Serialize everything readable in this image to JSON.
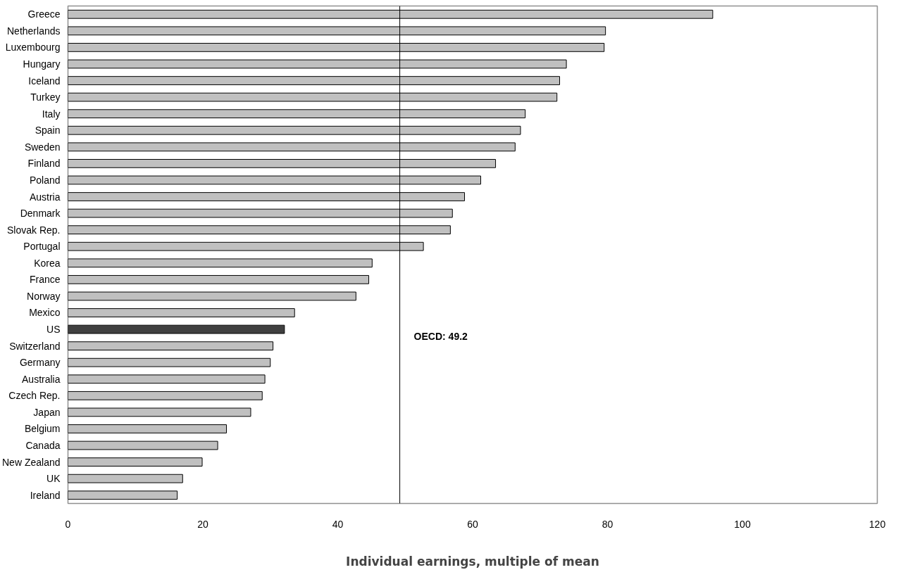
{
  "chart_data": {
    "type": "bar",
    "orientation": "horizontal",
    "xlabel": "Individual earnings, multiple of mean",
    "categories": [
      "Greece",
      "Netherlands",
      "Luxembourg",
      "Hungary",
      "Iceland",
      "Turkey",
      "Italy",
      "Spain",
      "Sweden",
      "Finland",
      "Poland",
      "Austria",
      "Denmark",
      "Slovak Rep.",
      "Portugal",
      "Korea",
      "France",
      "Norway",
      "Mexico",
      "US",
      "Switzerland",
      "Germany",
      "Australia",
      "Czech Rep.",
      "Japan",
      "Belgium",
      "Canada",
      "New Zealand",
      "UK",
      "Ireland"
    ],
    "values": [
      95.6,
      79.7,
      79.5,
      73.9,
      72.9,
      72.5,
      67.8,
      67.1,
      66.3,
      63.4,
      61.2,
      58.8,
      57.0,
      56.7,
      52.7,
      45.1,
      44.6,
      42.7,
      33.6,
      32.1,
      30.4,
      30.0,
      29.2,
      28.8,
      27.1,
      23.5,
      22.2,
      19.9,
      17.0,
      16.2
    ],
    "colors": [
      "#c0c0c0",
      "#c0c0c0",
      "#c0c0c0",
      "#c0c0c0",
      "#c0c0c0",
      "#c0c0c0",
      "#c0c0c0",
      "#c0c0c0",
      "#c0c0c0",
      "#c0c0c0",
      "#c0c0c0",
      "#c0c0c0",
      "#c0c0c0",
      "#c0c0c0",
      "#c0c0c0",
      "#c0c0c0",
      "#c0c0c0",
      "#c0c0c0",
      "#c0c0c0",
      "#404040",
      "#c0c0c0",
      "#c0c0c0",
      "#c0c0c0",
      "#c0c0c0",
      "#c0c0c0",
      "#c0c0c0",
      "#c0c0c0",
      "#c0c0c0",
      "#c0c0c0",
      "#c0c0c0"
    ],
    "xlim": [
      0,
      120
    ],
    "xticks": [
      0,
      20,
      40,
      60,
      80,
      100,
      120
    ],
    "grid": false,
    "ref_lines": [
      {
        "axis": "x",
        "value": 49.2,
        "label": "OECD: 49.2",
        "color": "#000000"
      }
    ]
  }
}
